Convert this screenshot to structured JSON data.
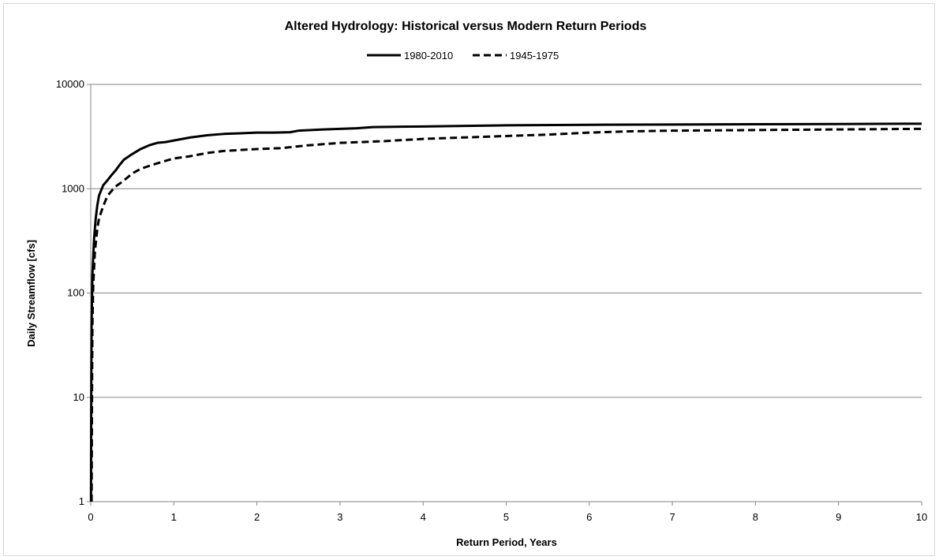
{
  "chart_data": {
    "type": "line",
    "title": "Altered Hydrology: Historical versus Modern Return Periods",
    "xlabel": "Return Period, Years",
    "ylabel": "Daily Streamflow  [cfs]",
    "xlim": [
      0,
      10
    ],
    "ylim": [
      1,
      10000
    ],
    "yscale": "log",
    "grid": "horizontal",
    "legend_position": "top-center",
    "x_ticks": [
      "0",
      "1",
      "2",
      "3",
      "4",
      "5",
      "6",
      "7",
      "8",
      "9",
      "10"
    ],
    "y_ticks": [
      "1",
      "10",
      "100",
      "1000",
      "10000"
    ],
    "series": [
      {
        "name": "1980-2010",
        "style": "solid",
        "color": "#000000",
        "points": [
          [
            0.003,
            1
          ],
          [
            0.006,
            10
          ],
          [
            0.01,
            50
          ],
          [
            0.02,
            150
          ],
          [
            0.04,
            330
          ],
          [
            0.06,
            520
          ],
          [
            0.08,
            700
          ],
          [
            0.1,
            860
          ],
          [
            0.15,
            1080
          ],
          [
            0.2,
            1200
          ],
          [
            0.25,
            1350
          ],
          [
            0.3,
            1500
          ],
          [
            0.35,
            1700
          ],
          [
            0.4,
            1900
          ],
          [
            0.5,
            2150
          ],
          [
            0.6,
            2400
          ],
          [
            0.7,
            2600
          ],
          [
            0.8,
            2750
          ],
          [
            0.9,
            2800
          ],
          [
            1.0,
            2900
          ],
          [
            1.2,
            3100
          ],
          [
            1.4,
            3250
          ],
          [
            1.6,
            3350
          ],
          [
            1.8,
            3400
          ],
          [
            2.0,
            3450
          ],
          [
            2.2,
            3450
          ],
          [
            2.4,
            3480
          ],
          [
            2.5,
            3600
          ],
          [
            2.8,
            3700
          ],
          [
            3.0,
            3750
          ],
          [
            3.2,
            3800
          ],
          [
            3.4,
            3900
          ],
          [
            4.0,
            3950
          ],
          [
            4.5,
            4000
          ],
          [
            5.0,
            4050
          ],
          [
            6.0,
            4100
          ],
          [
            7.0,
            4120
          ],
          [
            8.0,
            4150
          ],
          [
            9.0,
            4170
          ],
          [
            10.0,
            4200
          ]
        ]
      },
      {
        "name": "1945-1975",
        "style": "dashed",
        "color": "#000000",
        "points": [
          [
            0.01,
            1
          ],
          [
            0.015,
            10
          ],
          [
            0.02,
            50
          ],
          [
            0.03,
            120
          ],
          [
            0.05,
            250
          ],
          [
            0.08,
            420
          ],
          [
            0.1,
            520
          ],
          [
            0.15,
            680
          ],
          [
            0.2,
            850
          ],
          [
            0.25,
            950
          ],
          [
            0.3,
            1050
          ],
          [
            0.4,
            1200
          ],
          [
            0.5,
            1400
          ],
          [
            0.6,
            1550
          ],
          [
            0.7,
            1650
          ],
          [
            0.8,
            1750
          ],
          [
            0.9,
            1850
          ],
          [
            1.0,
            1950
          ],
          [
            1.2,
            2050
          ],
          [
            1.4,
            2200
          ],
          [
            1.6,
            2300
          ],
          [
            1.8,
            2350
          ],
          [
            2.0,
            2400
          ],
          [
            2.3,
            2450
          ],
          [
            2.6,
            2600
          ],
          [
            3.0,
            2750
          ],
          [
            3.5,
            2850
          ],
          [
            4.0,
            3000
          ],
          [
            4.5,
            3100
          ],
          [
            5.0,
            3200
          ],
          [
            5.5,
            3300
          ],
          [
            6.0,
            3450
          ],
          [
            6.5,
            3550
          ],
          [
            7.0,
            3600
          ],
          [
            8.0,
            3650
          ],
          [
            9.0,
            3700
          ],
          [
            10.0,
            3750
          ]
        ]
      }
    ]
  }
}
